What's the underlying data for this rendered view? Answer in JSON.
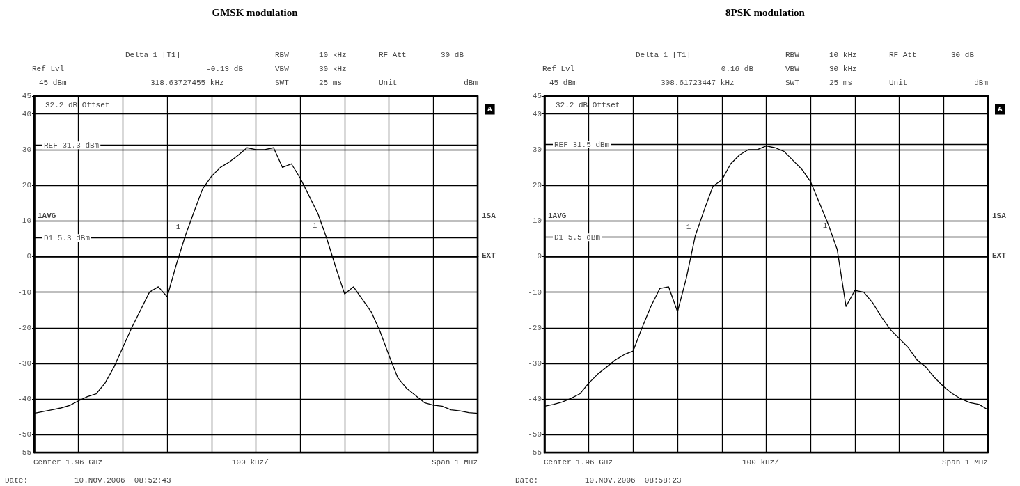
{
  "chart_data": [
    {
      "type": "line",
      "title": "GMSK modulation",
      "categories": [
        null,
        null,
        null,
        null,
        null,
        null,
        null,
        null,
        null,
        null,
        null,
        null,
        null,
        null,
        null,
        null,
        null,
        null,
        null,
        null,
        null,
        null,
        null,
        null,
        null,
        null,
        null,
        null,
        null,
        null,
        null,
        null,
        null,
        null,
        null,
        null,
        null,
        null,
        null,
        null,
        null,
        null,
        null,
        null,
        null,
        null,
        null,
        null,
        null,
        null,
        null
      ],
      "series": [
        {
          "color": "#000000",
          "values": [
            -44,
            -43.5,
            -43,
            -42.5,
            -41.8,
            -40.5,
            -39.3,
            -38.5,
            -35.5,
            -31,
            -25.5,
            -20,
            -15,
            -10,
            -8.5,
            -11.3,
            -2.5,
            5.5,
            12.4,
            19,
            22.5,
            25,
            26.5,
            28.4,
            30.5,
            30,
            30,
            30.5,
            25,
            26,
            22,
            17,
            12,
            5,
            -3,
            -10.5,
            -8.5,
            -12,
            -15.5,
            -21,
            -27.7,
            -34,
            -37,
            -39,
            -41,
            -41.7,
            -42,
            -43,
            -43.3,
            -43.8,
            -44
          ]
        }
      ],
      "ylim": [
        -55,
        45
      ],
      "yticks": [
        -55,
        -50,
        -40,
        -30,
        -20,
        -10,
        0,
        10,
        20,
        30,
        40,
        45
      ],
      "grid": true,
      "marker": "none",
      "line_style": "solid",
      "ref_lines": [
        {
          "axis": "y",
          "value": 31.3,
          "label": "REF 31.3 dBm",
          "color": "#000000"
        },
        {
          "axis": "y",
          "value": 5.3,
          "label": "D1 5.3 dBm",
          "color": "#000000"
        }
      ],
      "annotations": [
        "Delta 1 [T1]",
        "RBW",
        "10 kHz",
        "RF Att",
        "30 dB",
        "Ref Lvl",
        "-0.13 dB",
        "VBW",
        "30 kHz",
        "45 dBm",
        "318.63727455 kHz",
        "SWT",
        "25 ms",
        "Unit",
        "dBm",
        "32.2 dB Offset",
        "1AVG",
        "1SA",
        "EXT",
        "A",
        "1",
        "1",
        "Center 1.96 GHz",
        "100 kHz/",
        "Span 1 MHz",
        "Date:",
        "10.NOV.2006  08:52:43"
      ]
    },
    {
      "type": "line",
      "title": "8PSK modulation",
      "categories": [
        null,
        null,
        null,
        null,
        null,
        null,
        null,
        null,
        null,
        null,
        null,
        null,
        null,
        null,
        null,
        null,
        null,
        null,
        null,
        null,
        null,
        null,
        null,
        null,
        null,
        null,
        null,
        null,
        null,
        null,
        null,
        null,
        null,
        null,
        null,
        null,
        null,
        null,
        null,
        null,
        null,
        null,
        null,
        null,
        null,
        null,
        null,
        null,
        null,
        null,
        null
      ],
      "series": [
        {
          "color": "#000000",
          "values": [
            -42,
            -41.5,
            -40.8,
            -39.8,
            -38.5,
            -35.5,
            -33,
            -31,
            -29,
            -27.5,
            -26.5,
            -20,
            -14,
            -9,
            -8.5,
            -15.5,
            -6,
            5.8,
            13,
            19.7,
            21.5,
            26,
            28.5,
            30,
            30,
            31,
            30.5,
            29.5,
            27,
            24.5,
            21,
            15,
            9,
            2,
            -14,
            -9.5,
            -10,
            -13,
            -17,
            -20.5,
            -23,
            -25.5,
            -29,
            -31,
            -34,
            -36.5,
            -38.5,
            -40,
            -41,
            -41.5,
            -43
          ]
        }
      ],
      "ylim": [
        -55,
        45
      ],
      "yticks": [
        -55,
        -50,
        -40,
        -30,
        -20,
        -10,
        0,
        10,
        20,
        30,
        40,
        45
      ],
      "grid": true,
      "marker": "none",
      "line_style": "solid",
      "ref_lines": [
        {
          "axis": "y",
          "value": 31.5,
          "label": "REF 31.5 dBm",
          "color": "#000000"
        },
        {
          "axis": "y",
          "value": 5.5,
          "label": "D1 5.5 dBm",
          "color": "#000000"
        }
      ],
      "annotations": [
        "Delta 1 [T1]",
        "RBW",
        "10 kHz",
        "RF Att",
        "30 dB",
        "Ref Lvl",
        "0.16 dB",
        "VBW",
        "30 kHz",
        "45 dBm",
        "308.61723447 kHz",
        "SWT",
        "25 ms",
        "Unit",
        "dBm",
        "32.2 dB Offset",
        "1AVG",
        "1SA",
        "EXT",
        "A",
        "1",
        "1",
        "Center 1.96 GHz",
        "100 kHz/",
        "Span 1 MHz",
        "Date:",
        "10.NOV.2006  08:58:23"
      ]
    }
  ]
}
